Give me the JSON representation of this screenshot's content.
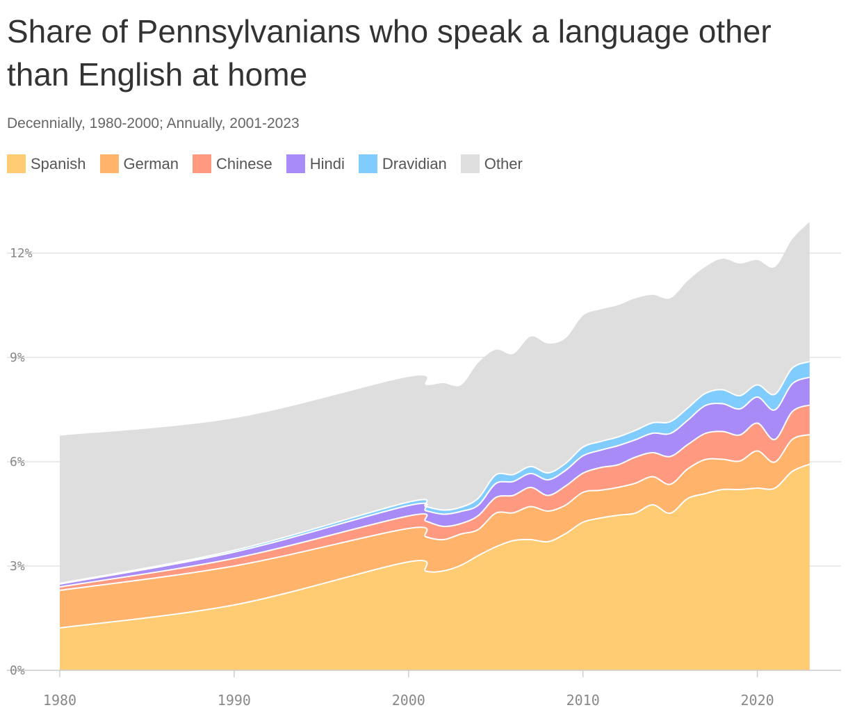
{
  "chart_data": {
    "type": "area",
    "stacked": true,
    "title": "Share of Pennsylvanians who speak a language other than English at home",
    "subtitle": "Decennially, 1980-2000; Annually, 2001-2023",
    "x": [
      1980,
      1990,
      2000,
      2001,
      2002,
      2003,
      2004,
      2005,
      2006,
      2007,
      2008,
      2009,
      2010,
      2011,
      2012,
      2013,
      2014,
      2015,
      2016,
      2017,
      2018,
      2019,
      2020,
      2021,
      2022,
      2023
    ],
    "series": [
      {
        "name": "Spanish",
        "color": "#FFCC73",
        "values": [
          1.22,
          1.88,
          3.12,
          2.85,
          2.86,
          3.02,
          3.3,
          3.55,
          3.73,
          3.76,
          3.7,
          3.93,
          4.26,
          4.38,
          4.46,
          4.52,
          4.76,
          4.52,
          4.94,
          5.08,
          5.2,
          5.2,
          5.24,
          5.24,
          5.72,
          5.93
        ]
      },
      {
        "name": "German",
        "color": "#FFB36B",
        "values": [
          1.08,
          1.12,
          0.96,
          0.99,
          0.9,
          0.9,
          0.75,
          0.97,
          0.8,
          0.95,
          0.88,
          0.82,
          0.86,
          0.8,
          0.8,
          0.86,
          0.81,
          0.83,
          0.85,
          0.98,
          0.87,
          0.82,
          1.07,
          0.75,
          0.92,
          0.85
        ]
      },
      {
        "name": "Chinese",
        "color": "#FF9A80",
        "values": [
          0.1,
          0.22,
          0.36,
          0.45,
          0.38,
          0.3,
          0.4,
          0.45,
          0.5,
          0.55,
          0.45,
          0.55,
          0.55,
          0.65,
          0.65,
          0.75,
          0.69,
          0.8,
          0.7,
          0.75,
          0.8,
          0.75,
          0.8,
          0.65,
          0.8,
          0.85
        ]
      },
      {
        "name": "Hindi",
        "color": "#A98BF8",
        "values": [
          0.08,
          0.18,
          0.3,
          0.3,
          0.35,
          0.35,
          0.3,
          0.4,
          0.4,
          0.4,
          0.45,
          0.45,
          0.5,
          0.5,
          0.55,
          0.5,
          0.56,
          0.66,
          0.7,
          0.8,
          0.8,
          0.75,
          0.75,
          0.85,
          0.8,
          0.8
        ]
      },
      {
        "name": "Dravidian",
        "color": "#80CCFF",
        "values": [
          0.02,
          0.05,
          0.1,
          0.12,
          0.12,
          0.12,
          0.2,
          0.25,
          0.2,
          0.2,
          0.2,
          0.2,
          0.25,
          0.25,
          0.25,
          0.27,
          0.3,
          0.34,
          0.35,
          0.35,
          0.4,
          0.38,
          0.35,
          0.45,
          0.45,
          0.45
        ]
      },
      {
        "name": "Other",
        "color": "#DEDEDE",
        "values": [
          4.25,
          3.8,
          3.6,
          3.5,
          3.65,
          3.51,
          3.9,
          3.6,
          3.47,
          3.74,
          3.72,
          3.6,
          3.78,
          3.8,
          3.79,
          3.8,
          3.68,
          3.55,
          3.66,
          3.64,
          3.77,
          3.8,
          3.59,
          3.66,
          3.71,
          4.02
        ]
      }
    ],
    "xlim": [
      1980,
      2024.8
    ],
    "ylim": [
      0,
      13
    ],
    "x_ticks": [
      1980,
      1990,
      2000,
      2010,
      2020
    ],
    "y_ticks": [
      0,
      3,
      6,
      9,
      12
    ],
    "y_tick_suffix": "%",
    "grid": "horizontal",
    "legend_position": "top-left"
  }
}
